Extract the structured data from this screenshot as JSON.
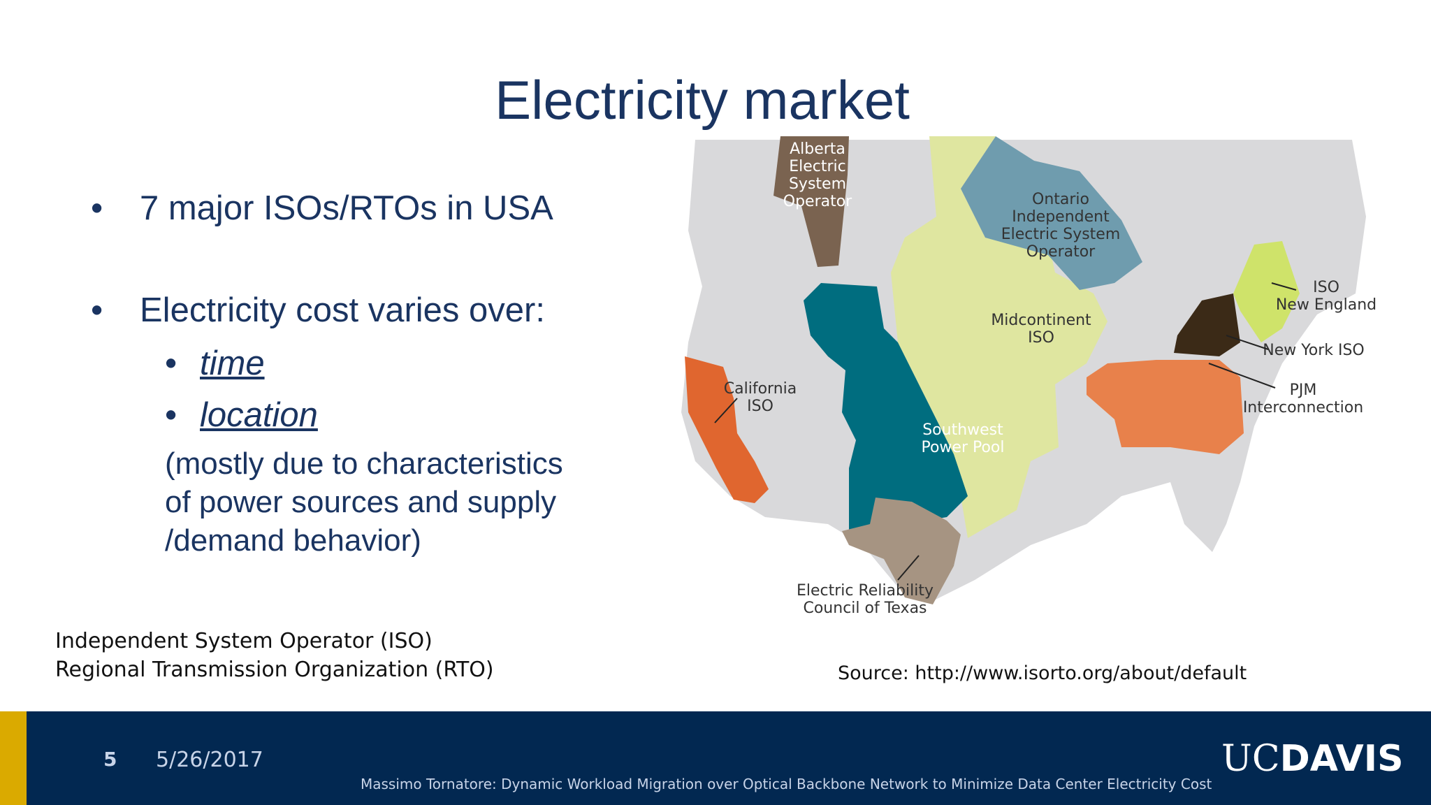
{
  "slide": {
    "title": "Electricity market",
    "bullets": [
      {
        "marker": "•",
        "text": "7 major ISOs/RTOs in USA"
      },
      {
        "marker": "•",
        "text": "Electricity cost varies over:"
      }
    ],
    "sub_bullets": [
      {
        "marker": "•",
        "text": "time"
      },
      {
        "marker": "•",
        "text": "location"
      }
    ],
    "note_lines": [
      "(mostly due to characteristics",
      "of power sources and supply",
      "/demand behavior)"
    ],
    "definitions": [
      "Independent System Operator (ISO)",
      "Regional Transmission Organization (RTO)"
    ],
    "source": "Source: http://www.isorto.org/about/default"
  },
  "map": {
    "labels": {
      "alberta": [
        "Alberta",
        "Electric",
        "System",
        "Operator"
      ],
      "ontario": [
        "Ontario",
        "Independent",
        "Electric System",
        "Operator"
      ],
      "iso_ne": [
        "ISO",
        "New England"
      ],
      "midcontinent": [
        "Midcontinent",
        "ISO"
      ],
      "nyiso": [
        "New York ISO"
      ],
      "pjm": [
        "PJM",
        "Interconnection"
      ],
      "california": [
        "California",
        "ISO"
      ],
      "spp": [
        "Southwest",
        "Power Pool"
      ],
      "ercot": [
        "Electric Reliability",
        "Council of Texas"
      ]
    },
    "colors": {
      "land": "#d9d9db",
      "alberta": "#7a6350",
      "ontario": "#6f9cae",
      "midcontinent": "#dfe6a0",
      "iso_ne": "#cfe36a",
      "nyiso": "#3b2a17",
      "pjm": "#e8814b",
      "california": "#e0662f",
      "spp": "#006d7f",
      "ercot": "#a69482"
    }
  },
  "footer": {
    "page_number": "5",
    "date": "5/26/2017",
    "text": "Massimo Tornatore: Dynamic Workload Migration over Optical Backbone Network to Minimize Data Center Electricity Cost",
    "logo_uc": "UC",
    "logo_davis": "DAVIS",
    "accent": "#daaa00",
    "bg": "#022851"
  }
}
